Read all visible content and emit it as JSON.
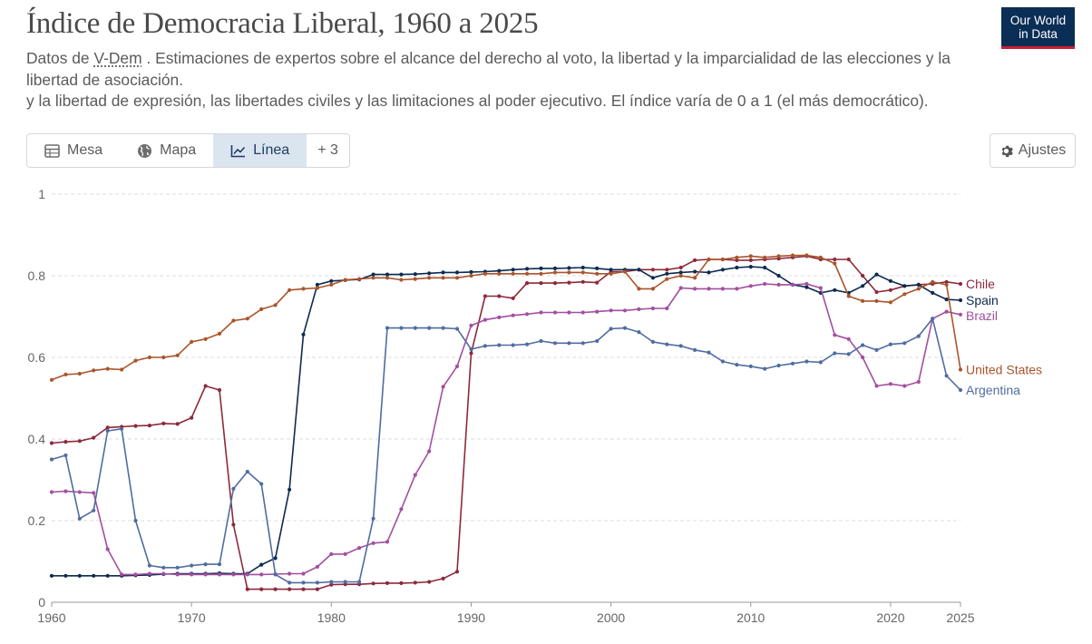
{
  "header": {
    "title": "Índice de Democracia Liberal, 1960 a 2025",
    "subtitle_prefix": "Datos de ",
    "subtitle_source": "V-Dem",
    "subtitle_line1": " . Estimaciones de expertos sobre el alcance del derecho al voto, la libertad y la imparcialidad de las elecciones y la libertad de asociación.",
    "subtitle_line2": "y la libertad de expresión, las libertades civiles y las limitaciones al poder ejecutivo. El índice varía de 0 a 1 (el más democrático).",
    "logo_line1": "Our World",
    "logo_line2": "in Data"
  },
  "tabs": [
    {
      "label": "Mesa",
      "icon": "table-icon",
      "active": false
    },
    {
      "label": "Mapa",
      "icon": "globe-icon",
      "active": false
    },
    {
      "label": "Línea",
      "icon": "line-chart-icon",
      "active": true
    },
    {
      "label": "+ 3",
      "icon": "",
      "active": false
    }
  ],
  "settings": {
    "label": "Ajustes",
    "icon": "gear-icon"
  },
  "chart_data": {
    "type": "line",
    "title": "Índice de Democracia Liberal, 1960 a 2025",
    "xlim": [
      1960,
      2025
    ],
    "ylim": [
      0,
      1
    ],
    "x_ticks": [
      1960,
      1970,
      1980,
      1990,
      2000,
      2010,
      2020,
      2025
    ],
    "y_ticks": [
      0,
      0.2,
      0.4,
      0.6,
      0.8,
      1
    ],
    "y_tick_labels": [
      "0",
      "0.2",
      "0.4",
      "0.6",
      "0.8",
      "1"
    ],
    "grid": "horizontal-dashed",
    "legend": "right-end-labels",
    "series": [
      {
        "name": "Chile",
        "color": "#8c2a3c",
        "values": [
          0.39,
          0.393,
          0.395,
          0.403,
          0.428,
          0.43,
          0.432,
          0.433,
          0.438,
          0.437,
          0.452,
          0.53,
          0.52,
          0.19,
          0.032,
          0.032,
          0.032,
          0.032,
          0.032,
          0.032,
          0.043,
          0.044,
          0.044,
          0.046,
          0.047,
          0.047,
          0.048,
          0.05,
          0.058,
          0.075,
          0.61,
          0.75,
          0.75,
          0.745,
          0.782,
          0.782,
          0.782,
          0.783,
          0.785,
          0.783,
          0.81,
          0.81,
          0.815,
          0.815,
          0.815,
          0.82,
          0.838,
          0.84,
          0.84,
          0.838,
          0.838,
          0.84,
          0.842,
          0.845,
          0.848,
          0.84,
          0.84,
          0.84,
          0.8,
          0.76,
          0.765,
          0.775,
          0.778,
          0.78,
          0.785,
          0.78
        ]
      },
      {
        "name": "Spain",
        "color": "#0d2a4f",
        "values": [
          0.065,
          0.065,
          0.065,
          0.065,
          0.065,
          0.065,
          0.066,
          0.067,
          0.069,
          0.07,
          0.07,
          0.07,
          0.071,
          0.07,
          0.07,
          0.092,
          0.108,
          0.276,
          0.656,
          0.778,
          0.787,
          0.789,
          0.791,
          0.803,
          0.803,
          0.803,
          0.804,
          0.806,
          0.808,
          0.808,
          0.809,
          0.81,
          0.812,
          0.815,
          0.817,
          0.818,
          0.818,
          0.819,
          0.82,
          0.818,
          0.815,
          0.815,
          0.815,
          0.795,
          0.805,
          0.808,
          0.81,
          0.808,
          0.815,
          0.82,
          0.822,
          0.82,
          0.8,
          0.778,
          0.772,
          0.758,
          0.765,
          0.758,
          0.775,
          0.803,
          0.787,
          0.775,
          0.778,
          0.758,
          0.742,
          0.74
        ]
      },
      {
        "name": "Brazil",
        "color": "#a24f9f",
        "values": [
          0.27,
          0.272,
          0.27,
          0.268,
          0.13,
          0.068,
          0.068,
          0.07,
          0.07,
          0.068,
          0.068,
          0.068,
          0.068,
          0.068,
          0.068,
          0.068,
          0.069,
          0.07,
          0.07,
          0.087,
          0.118,
          0.118,
          0.133,
          0.145,
          0.148,
          0.228,
          0.312,
          0.37,
          0.528,
          0.578,
          0.678,
          0.692,
          0.698,
          0.703,
          0.706,
          0.71,
          0.71,
          0.71,
          0.71,
          0.712,
          0.715,
          0.715,
          0.718,
          0.72,
          0.72,
          0.77,
          0.768,
          0.768,
          0.768,
          0.768,
          0.775,
          0.78,
          0.778,
          0.778,
          0.78,
          0.77,
          0.655,
          0.645,
          0.6,
          0.53,
          0.535,
          0.53,
          0.54,
          0.695,
          0.712,
          0.705
        ]
      },
      {
        "name": "United States",
        "color": "#a9552b",
        "values": [
          0.545,
          0.558,
          0.56,
          0.568,
          0.572,
          0.57,
          0.592,
          0.6,
          0.6,
          0.605,
          0.638,
          0.645,
          0.658,
          0.69,
          0.695,
          0.718,
          0.728,
          0.765,
          0.768,
          0.77,
          0.778,
          0.79,
          0.792,
          0.795,
          0.795,
          0.79,
          0.792,
          0.795,
          0.795,
          0.795,
          0.8,
          0.805,
          0.805,
          0.805,
          0.805,
          0.805,
          0.808,
          0.808,
          0.808,
          0.805,
          0.805,
          0.81,
          0.768,
          0.768,
          0.792,
          0.8,
          0.795,
          0.84,
          0.84,
          0.845,
          0.848,
          0.845,
          0.848,
          0.85,
          0.85,
          0.845,
          0.83,
          0.75,
          0.738,
          0.738,
          0.735,
          0.755,
          0.768,
          0.785,
          0.778,
          0.57
        ]
      },
      {
        "name": "Argentina",
        "color": "#506c9f",
        "values": [
          0.35,
          0.36,
          0.205,
          0.225,
          0.42,
          0.425,
          0.2,
          0.09,
          0.085,
          0.085,
          0.09,
          0.093,
          0.093,
          0.278,
          0.32,
          0.29,
          0.068,
          0.048,
          0.048,
          0.048,
          0.05,
          0.05,
          0.05,
          0.205,
          0.672,
          0.672,
          0.672,
          0.672,
          0.672,
          0.67,
          0.62,
          0.628,
          0.63,
          0.63,
          0.632,
          0.64,
          0.635,
          0.635,
          0.635,
          0.64,
          0.67,
          0.672,
          0.662,
          0.638,
          0.632,
          0.628,
          0.618,
          0.612,
          0.59,
          0.582,
          0.578,
          0.572,
          0.58,
          0.585,
          0.59,
          0.588,
          0.61,
          0.608,
          0.63,
          0.618,
          0.632,
          0.635,
          0.652,
          0.695,
          0.555,
          0.52
        ]
      }
    ]
  }
}
